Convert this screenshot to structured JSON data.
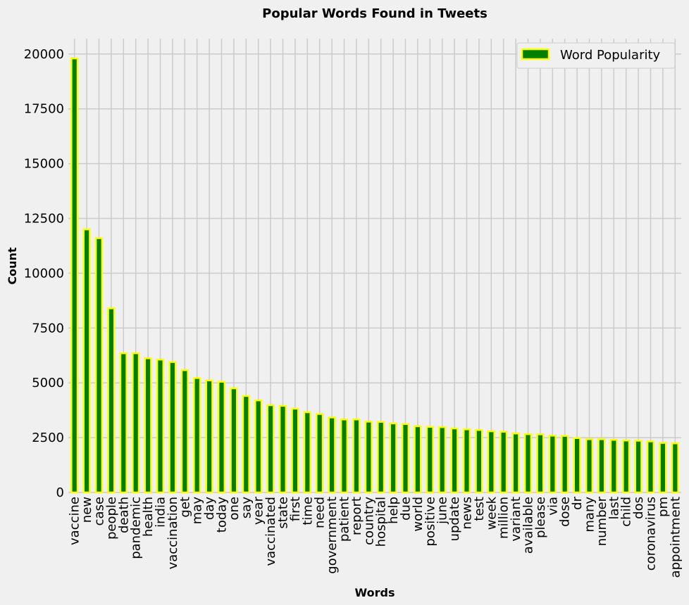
{
  "chart_data": {
    "type": "bar",
    "title": "Popular Words Found in Tweets",
    "xlabel": "Words",
    "ylabel": "Count",
    "ylim": [
      0,
      20700
    ],
    "yticks": [
      "0",
      "2500",
      "5000",
      "7500",
      "10000",
      "12500",
      "15000",
      "17500",
      "20000"
    ],
    "categories": [
      "vaccine",
      "new",
      "case",
      "people",
      "death",
      "pandemic",
      "health",
      "india",
      "vaccination",
      "get",
      "may",
      "day",
      "today",
      "one",
      "say",
      "year",
      "vaccinated",
      "state",
      "first",
      "time",
      "need",
      "government",
      "patient",
      "report",
      "country",
      "hospital",
      "help",
      "due",
      "world",
      "positive",
      "june",
      "update",
      "news",
      "test",
      "week",
      "million",
      "variant",
      "available",
      "please",
      "via",
      "dose",
      "dr",
      "many",
      "number",
      "last",
      "child",
      "dos",
      "coronavirus",
      "pm",
      "appointment"
    ],
    "series": [
      {
        "name": "Word Popularity",
        "values": [
          19800,
          12000,
          11600,
          8400,
          6350,
          6350,
          6120,
          6060,
          5950,
          5580,
          5220,
          5110,
          5050,
          4750,
          4400,
          4200,
          3980,
          3950,
          3820,
          3660,
          3580,
          3420,
          3330,
          3330,
          3230,
          3220,
          3150,
          3120,
          3020,
          2990,
          2980,
          2920,
          2880,
          2850,
          2790,
          2770,
          2690,
          2660,
          2650,
          2590,
          2580,
          2480,
          2430,
          2430,
          2400,
          2370,
          2360,
          2330,
          2260,
          2240
        ],
        "fill": "#008000",
        "edge": "#ffff00"
      }
    ],
    "grid": true,
    "legend_position": "top-right",
    "background": "#f0f0f0",
    "grid_color": "#cbcbcb"
  }
}
